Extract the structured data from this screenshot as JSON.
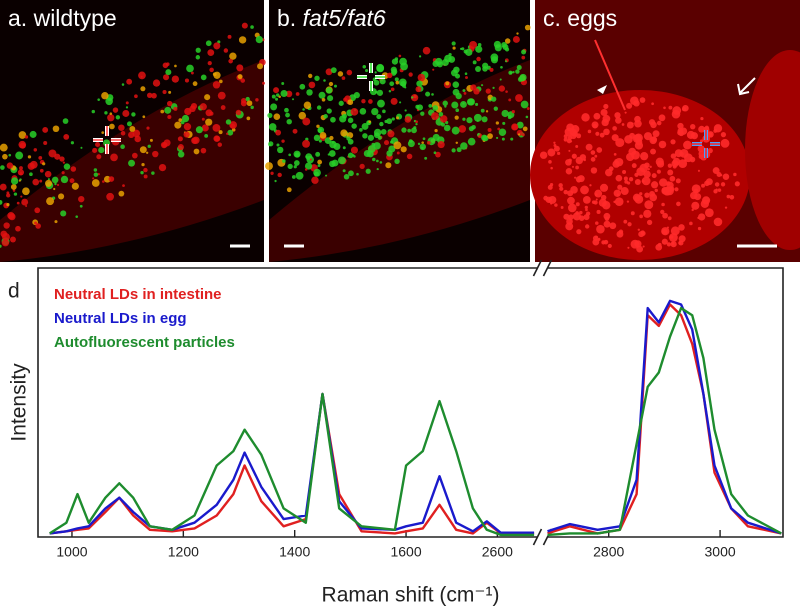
{
  "panels": [
    {
      "letter": "a.",
      "title": "wildtype"
    },
    {
      "letter": "b.",
      "title": "fat5/fat6"
    },
    {
      "letter": "c.",
      "title": "eggs"
    }
  ],
  "chart_data": {
    "type": "line",
    "panel_letter": "d",
    "x_label": "Raman shift (cm⁻¹)",
    "y_label": "Intensity",
    "x": [
      960,
      990,
      1010,
      1030,
      1060,
      1085,
      1110,
      1140,
      1180,
      1220,
      1260,
      1290,
      1310,
      1340,
      1380,
      1420,
      1450,
      1480,
      1520,
      1580,
      1600,
      1630,
      1660,
      1690,
      1720,
      1745,
      1770,
      1830,
      2000,
      2690,
      2730,
      2780,
      2820,
      2850,
      2870,
      2890,
      2910,
      2930,
      2950,
      2970,
      2990,
      3020,
      3050,
      3110
    ],
    "series": [
      {
        "name": "Neutral LDs in intestine",
        "color": "#e02020",
        "values": [
          0.05,
          0.08,
          0.1,
          0.12,
          0.35,
          0.55,
          0.3,
          0.1,
          0.08,
          0.12,
          0.3,
          0.6,
          1.0,
          0.5,
          0.15,
          0.25,
          2.0,
          0.6,
          0.08,
          0.05,
          0.08,
          0.12,
          0.45,
          0.1,
          0.05,
          0.2,
          0.05,
          0.05,
          null,
          0.05,
          0.15,
          0.05,
          0.1,
          0.6,
          3.1,
          2.95,
          3.25,
          3.1,
          2.7,
          2.0,
          0.9,
          0.4,
          0.15,
          0.05
        ]
      },
      {
        "name": "Neutral LDs in egg",
        "color": "#1a1acc",
        "values": [
          0.05,
          0.08,
          0.12,
          0.15,
          0.4,
          0.55,
          0.35,
          0.15,
          0.1,
          0.2,
          0.45,
          0.8,
          1.18,
          0.7,
          0.25,
          0.3,
          2.0,
          0.5,
          0.12,
          0.1,
          0.15,
          0.2,
          0.85,
          0.2,
          0.08,
          0.22,
          0.06,
          0.06,
          null,
          0.08,
          0.18,
          0.1,
          0.15,
          0.8,
          3.2,
          3.0,
          3.3,
          3.25,
          2.9,
          2.0,
          1.0,
          0.4,
          0.2,
          0.05
        ]
      },
      {
        "name": "Autofluorescent particles",
        "color": "#1e8c2e",
        "values": [
          0.05,
          0.2,
          0.6,
          0.2,
          0.55,
          0.75,
          0.55,
          0.15,
          0.1,
          0.3,
          1.0,
          1.2,
          1.5,
          1.15,
          0.4,
          0.2,
          2.0,
          0.4,
          0.15,
          0.1,
          1.0,
          1.2,
          1.9,
          1.2,
          0.4,
          0.1,
          0.03,
          0.03,
          null,
          0.03,
          0.05,
          0.05,
          0.1,
          1.3,
          2.1,
          2.3,
          2.8,
          3.2,
          3.1,
          2.5,
          1.5,
          0.6,
          0.3,
          0.05
        ]
      }
    ],
    "xlim": [
      939,
      3113
    ],
    "x_break": [
      1836,
      2690
    ],
    "xticks": [
      1000,
      1200,
      1400,
      1600,
      2600,
      2800,
      3000
    ],
    "ylim": [
      0,
      3.76
    ],
    "grid": false,
    "legend": "upper left"
  }
}
